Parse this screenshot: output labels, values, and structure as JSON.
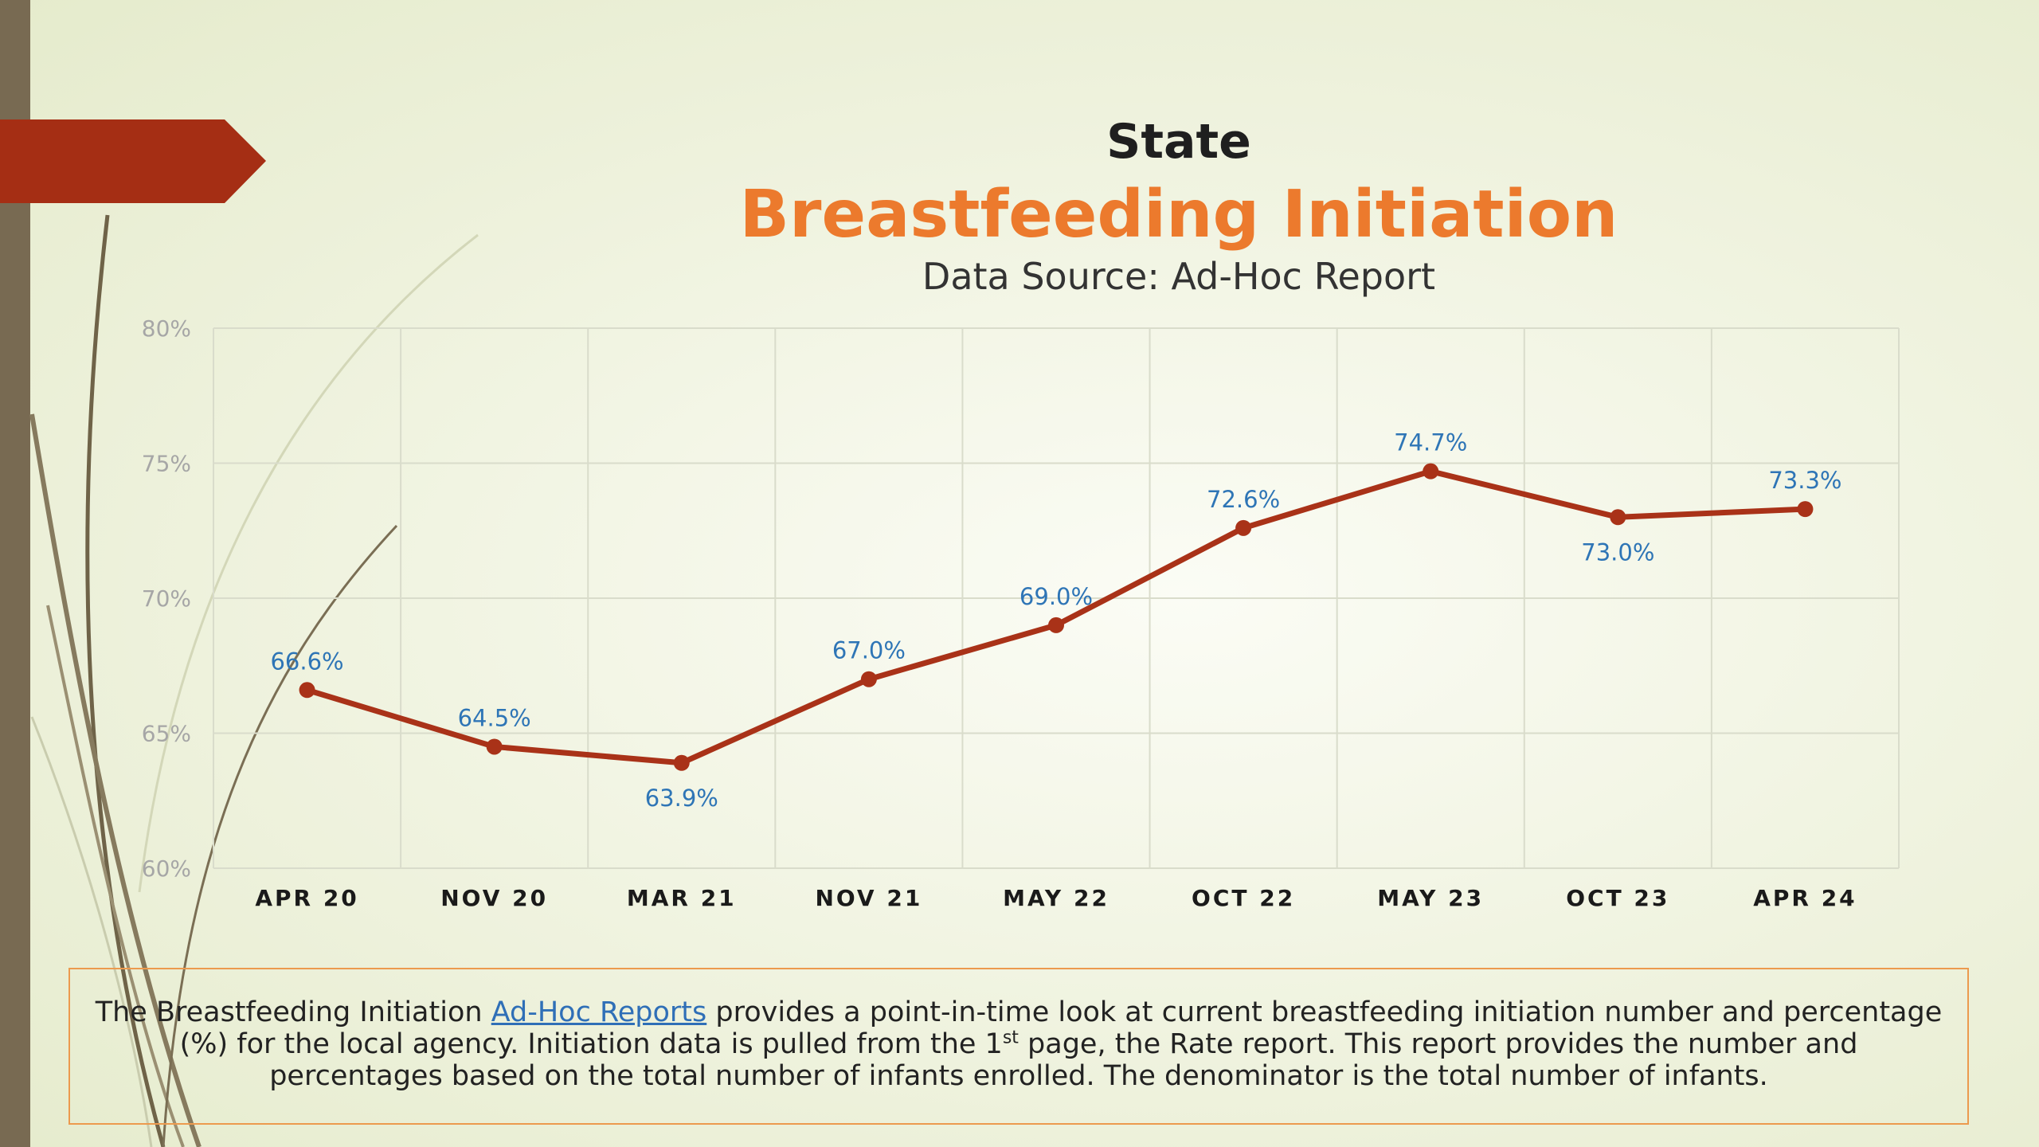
{
  "title": "State",
  "subtitle": "Breastfeeding Initiation",
  "source": "Data Source: Ad-Hoc Report",
  "description": {
    "text1": "The Breastfeeding Initiation ",
    "link": "Ad-Hoc Reports",
    "text2": " provides a point-in-time look at current breastfeeding initiation number and percentage (%) for the local agency. Initiation data is pulled from the 1",
    "sup": "st",
    "text3": " page, the Rate report. This report provides the number and percentages based on the total number of infants enrolled. The denominator is the total number of infants."
  },
  "colors": {
    "line": "#a93218",
    "label": "#2e75b6",
    "title_accent": "#ec7a2d",
    "banner": "#a52e14",
    "sidebar": "#786a52"
  },
  "chart_data": {
    "type": "line",
    "categories": [
      "APR 20",
      "NOV 20",
      "MAR 21",
      "NOV 21",
      "MAY 22",
      "OCT 22",
      "MAY 23",
      "OCT 23",
      "APR 24"
    ],
    "series": [
      {
        "values": [
          66.6,
          64.5,
          63.9,
          67.0,
          69.0,
          72.6,
          74.7,
          73.0,
          73.3
        ],
        "labels": [
          "66.6%",
          "64.5%",
          "63.9%",
          "67.0%",
          "69.0%",
          "72.6%",
          "74.7%",
          "73.0%",
          "73.3%"
        ]
      }
    ],
    "yticks": [
      "60%",
      "65%",
      "70%",
      "75%",
      "80%"
    ],
    "ylim": [
      60,
      80
    ],
    "grid": true,
    "title": "State",
    "subtitle": "Breastfeeding Initiation"
  }
}
